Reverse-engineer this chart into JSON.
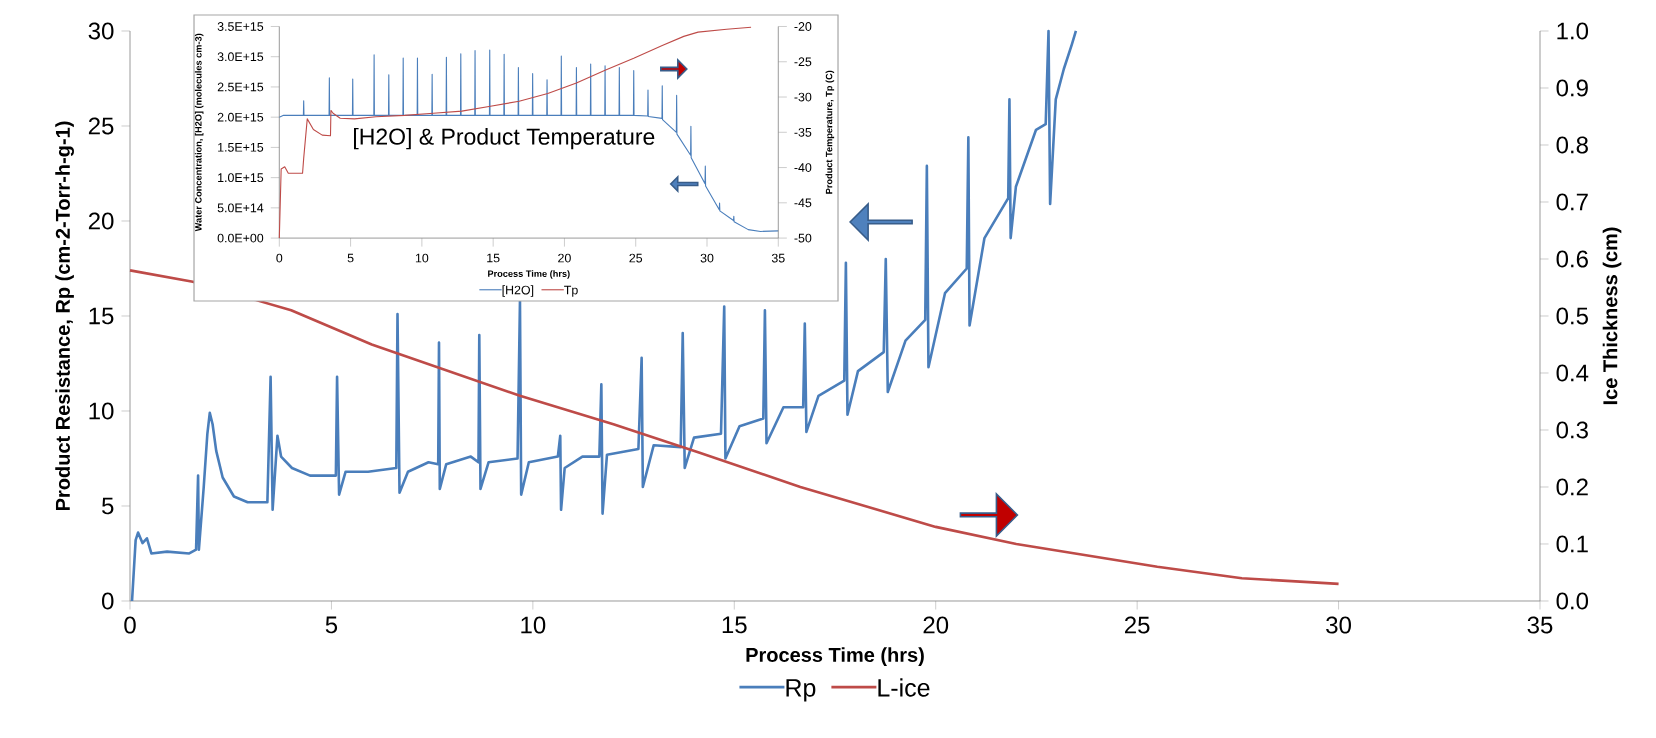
{
  "chart_data": [
    {
      "type": "line",
      "xlabel": "Process Time (hrs)",
      "ylabel": "Product Resistance, Rp (cm-2-Torr-h-g-1)",
      "y2label": "Ice Thickness (cm)",
      "xlim": [
        0,
        35
      ],
      "xticks": [
        0,
        5,
        10,
        15,
        20,
        25,
        30,
        35
      ],
      "ylim": [
        0,
        30
      ],
      "yticks": [
        0,
        5,
        10,
        15,
        20,
        25,
        30
      ],
      "y2lim": [
        0,
        1
      ],
      "y2ticks": [
        {
          "value": 0,
          "label": "0.0"
        },
        {
          "value": 0.1,
          "label": "0.1"
        },
        {
          "value": 0.2,
          "label": "0.2"
        },
        {
          "value": 0.3,
          "label": "0.3"
        },
        {
          "value": 0.4,
          "label": "0.4"
        },
        {
          "value": 0.5,
          "label": "0.5"
        },
        {
          "value": 0.6,
          "label": "0.6"
        },
        {
          "value": 0.7,
          "label": "0.7"
        },
        {
          "value": 0.8,
          "label": "0.8"
        },
        {
          "value": 0.9,
          "label": "0.9"
        },
        {
          "value": 1.0,
          "label": "1.0"
        }
      ],
      "legend": "bottom",
      "series": [
        {
          "name": "Rp",
          "color": "#4a7ebb",
          "x": [
            0.05,
            0.14,
            0.2,
            0.31,
            0.42,
            0.53,
            0.92,
            1.47,
            1.64,
            1.69,
            1.71,
            1.83,
            1.92,
            1.98,
            2.05,
            2.14,
            2.3,
            2.58,
            2.92,
            3.41,
            3.49,
            3.54,
            3.66,
            3.75,
            4.02,
            4.47,
            5.11,
            5.14,
            5.19,
            5.35,
            5.91,
            6.61,
            6.64,
            6.69,
            6.9,
            7.41,
            7.65,
            7.67,
            7.69,
            7.85,
            8.46,
            8.65,
            8.67,
            8.7,
            8.9,
            9.62,
            9.68,
            9.71,
            9.9,
            10.62,
            10.68,
            10.7,
            10.79,
            11.23,
            11.65,
            11.7,
            11.73,
            11.84,
            12.62,
            12.7,
            12.73,
            13.0,
            13.67,
            13.72,
            13.77,
            14.0,
            14.67,
            14.75,
            14.78,
            15.13,
            15.72,
            15.76,
            15.8,
            16.22,
            16.71,
            16.75,
            16.79,
            17.09,
            17.73,
            17.77,
            17.81,
            18.07,
            18.71,
            18.76,
            18.81,
            19.25,
            19.74,
            19.78,
            19.82,
            20.23,
            20.77,
            20.81,
            20.84,
            21.21,
            21.8,
            21.83,
            21.86,
            21.99,
            22.49,
            22.73,
            22.8,
            22.84,
            22.98,
            23.18,
            23.38,
            23.48
          ],
          "values": [
            0,
            3.2,
            3.6,
            3.05,
            3.3,
            2.5,
            2.6,
            2.5,
            2.7,
            6.6,
            2.7,
            6.0,
            8.8,
            9.9,
            9.3,
            7.9,
            6.5,
            5.5,
            5.2,
            5.2,
            11.8,
            4.8,
            8.7,
            7.6,
            7.0,
            6.6,
            6.6,
            11.8,
            5.6,
            6.8,
            6.8,
            7.0,
            15.1,
            5.7,
            6.8,
            7.3,
            7.2,
            13.6,
            5.9,
            7.2,
            7.6,
            7.3,
            14.0,
            5.9,
            7.3,
            7.5,
            15.8,
            5.6,
            7.3,
            7.6,
            8.7,
            4.8,
            7.0,
            7.6,
            7.6,
            11.4,
            4.6,
            7.7,
            8.0,
            12.8,
            6.0,
            8.2,
            8.1,
            14.1,
            7.0,
            8.6,
            8.8,
            15.5,
            7.5,
            9.2,
            9.6,
            15.3,
            8.3,
            10.2,
            10.2,
            14.6,
            8.9,
            10.8,
            11.6,
            17.8,
            9.8,
            12.1,
            13.1,
            18.0,
            11.0,
            13.7,
            14.8,
            22.9,
            12.3,
            16.2,
            17.5,
            24.4,
            14.5,
            19.1,
            21.2,
            26.4,
            19.1,
            21.8,
            24.8,
            25.1,
            30.0,
            20.9,
            26.4,
            28.0,
            29.3,
            30.0
          ]
        },
        {
          "name": "L-ice",
          "color": "#be4b48",
          "axis": "y2",
          "x": [
            0,
            1.56,
            4,
            6,
            9.68,
            12,
            14.14,
            16.64,
            20,
            22,
            25.5,
            27.6,
            30
          ],
          "values": [
            0.58,
            0.56,
            0.51,
            0.45,
            0.36,
            0.31,
            0.26,
            0.2,
            0.13,
            0.1,
            0.06,
            0.04,
            0.03
          ]
        }
      ]
    },
    {
      "type": "line",
      "title": "[H2O] & Product Temperature",
      "xlabel": "Process Time (hrs)",
      "ylabel": "Water Concentration, [H2O]  (molecules cm-3)",
      "y2label": "Product Temperature, Tp  (C)",
      "xlim": [
        0,
        35
      ],
      "xticks": [
        0,
        5,
        10,
        15,
        20,
        25,
        30,
        35
      ],
      "ylim": [
        0,
        3500000000000000.0
      ],
      "yticks": [
        {
          "value": 0,
          "label": "0.0E+00"
        },
        {
          "value": 500000000000000.0,
          "label": "5.0E+14"
        },
        {
          "value": 1000000000000000.0,
          "label": "1.0E+15"
        },
        {
          "value": 1500000000000000.0,
          "label": "1.5E+15"
        },
        {
          "value": 2000000000000000.0,
          "label": "2.0E+15"
        },
        {
          "value": 2500000000000000.0,
          "label": "2.5E+15"
        },
        {
          "value": 3000000000000000.0,
          "label": "3.0E+15"
        },
        {
          "value": 3500000000000000.0,
          "label": "3.5E+15"
        }
      ],
      "y2lim": [
        -50,
        -20
      ],
      "y2ticks": [
        -50,
        -45,
        -40,
        -35,
        -30,
        -25,
        -20
      ],
      "legend": "bottom",
      "series": [
        {
          "name": "[H2O]",
          "color": "#4a7ebb",
          "x": [
            0,
            0.3,
            1.69,
            1.71,
            1.73,
            3.49,
            3.51,
            3.53,
            5.13,
            5.15,
            5.17,
            6.63,
            6.65,
            6.67,
            7.66,
            7.68,
            7.7,
            8.67,
            8.69,
            8.71,
            9.67,
            9.69,
            9.71,
            10.7,
            10.72,
            10.74,
            11.7,
            11.72,
            11.74,
            12.71,
            12.73,
            12.75,
            13.71,
            13.73,
            13.75,
            14.74,
            14.76,
            14.78,
            15.75,
            15.77,
            15.79,
            16.75,
            16.77,
            16.79,
            17.75,
            17.77,
            17.79,
            18.76,
            18.78,
            18.8,
            19.76,
            19.78,
            19.8,
            20.82,
            20.84,
            20.86,
            21.82,
            21.84,
            21.86,
            22.83,
            22.85,
            22.87,
            23.83,
            23.85,
            23.87,
            24.84,
            24.86,
            24.88,
            25.84,
            25.86,
            25.88,
            26.84,
            26.86,
            26.88,
            27.85,
            27.87,
            27.89,
            28.85,
            28.87,
            28.89,
            29.86,
            29.88,
            29.9,
            30.86,
            30.88,
            30.9,
            31.86,
            31.88,
            31.9,
            32.89,
            33.76,
            35
          ],
          "values": [
            2000000000000000.0,
            2030000000000000.0,
            2030000000000000.0,
            2270000000000000.0,
            2030000000000000.0,
            2030000000000000.0,
            2650000000000000.0,
            2030000000000000.0,
            2030000000000000.0,
            2630000000000000.0,
            2030000000000000.0,
            2030000000000000.0,
            3030000000000000.0,
            2030000000000000.0,
            2030000000000000.0,
            2700000000000000.0,
            2030000000000000.0,
            2030000000000000.0,
            2980000000000000.0,
            2030000000000000.0,
            2030000000000000.0,
            2980000000000000.0,
            2030000000000000.0,
            2030000000000000.0,
            2710000000000000.0,
            2030000000000000.0,
            2030000000000000.0,
            2990000000000000.0,
            2030000000000000.0,
            2030000000000000.0,
            3050000000000000.0,
            2030000000000000.0,
            2030000000000000.0,
            3100000000000000.0,
            2030000000000000.0,
            2030000000000000.0,
            3110000000000000.0,
            2030000000000000.0,
            2030000000000000.0,
            3040000000000000.0,
            2030000000000000.0,
            2030000000000000.0,
            2820000000000000.0,
            2030000000000000.0,
            2030000000000000.0,
            2720000000000000.0,
            2030000000000000.0,
            2030000000000000.0,
            2620000000000000.0,
            2030000000000000.0,
            2030000000000000.0,
            3010000000000000.0,
            2030000000000000.0,
            2030000000000000.0,
            2820000000000000.0,
            2030000000000000.0,
            2030000000000000.0,
            2880000000000000.0,
            2030000000000000.0,
            2030000000000000.0,
            2850000000000000.0,
            2030000000000000.0,
            2030000000000000.0,
            2820000000000000.0,
            2030000000000000.0,
            2030000000000000.0,
            2770000000000000.0,
            2030000000000000.0,
            2020000000000000.0,
            2450000000000000.0,
            2010000000000000.0,
            1980000000000000.0,
            2520000000000000.0,
            1960000000000000.0,
            1750000000000000.0,
            2360000000000000.0,
            1720000000000000.0,
            1370000000000000.0,
            1850000000000000.0,
            1330000000000000.0,
            900000000000000.0,
            1190000000000000.0,
            860000000000000.0,
            470000000000000.0,
            580000000000000.0,
            450000000000000.0,
            290000000000000.0,
            360000000000000.0,
            270000000000000.0,
            140000000000000.0,
            110000000000000.0,
            120000000000000.0
          ]
        },
        {
          "name": "Tp",
          "color": "#be4b48",
          "axis": "y2",
          "x": [
            0,
            0.13,
            0.38,
            0.63,
            1.63,
            1.71,
            1.96,
            2.39,
            3.01,
            3.59,
            3.62,
            3.77,
            4.27,
            5.27,
            6.78,
            8.79,
            10.8,
            12.8,
            14.81,
            16.82,
            18.83,
            20.84,
            22.85,
            24.86,
            26.86,
            28.37,
            29.37,
            31.38,
            33.09
          ],
          "values": [
            -50,
            -40.2,
            -39.9,
            -40.8,
            -40.8,
            -38.7,
            -33.1,
            -34.6,
            -35.4,
            -35.5,
            -31.9,
            -32.3,
            -33.0,
            -33.1,
            -32.8,
            -32.6,
            -32.3,
            -32.0,
            -31.3,
            -30.6,
            -29.5,
            -28.0,
            -26.2,
            -24.5,
            -22.7,
            -21.4,
            -20.8,
            -20.4,
            -20.1
          ]
        }
      ]
    }
  ]
}
